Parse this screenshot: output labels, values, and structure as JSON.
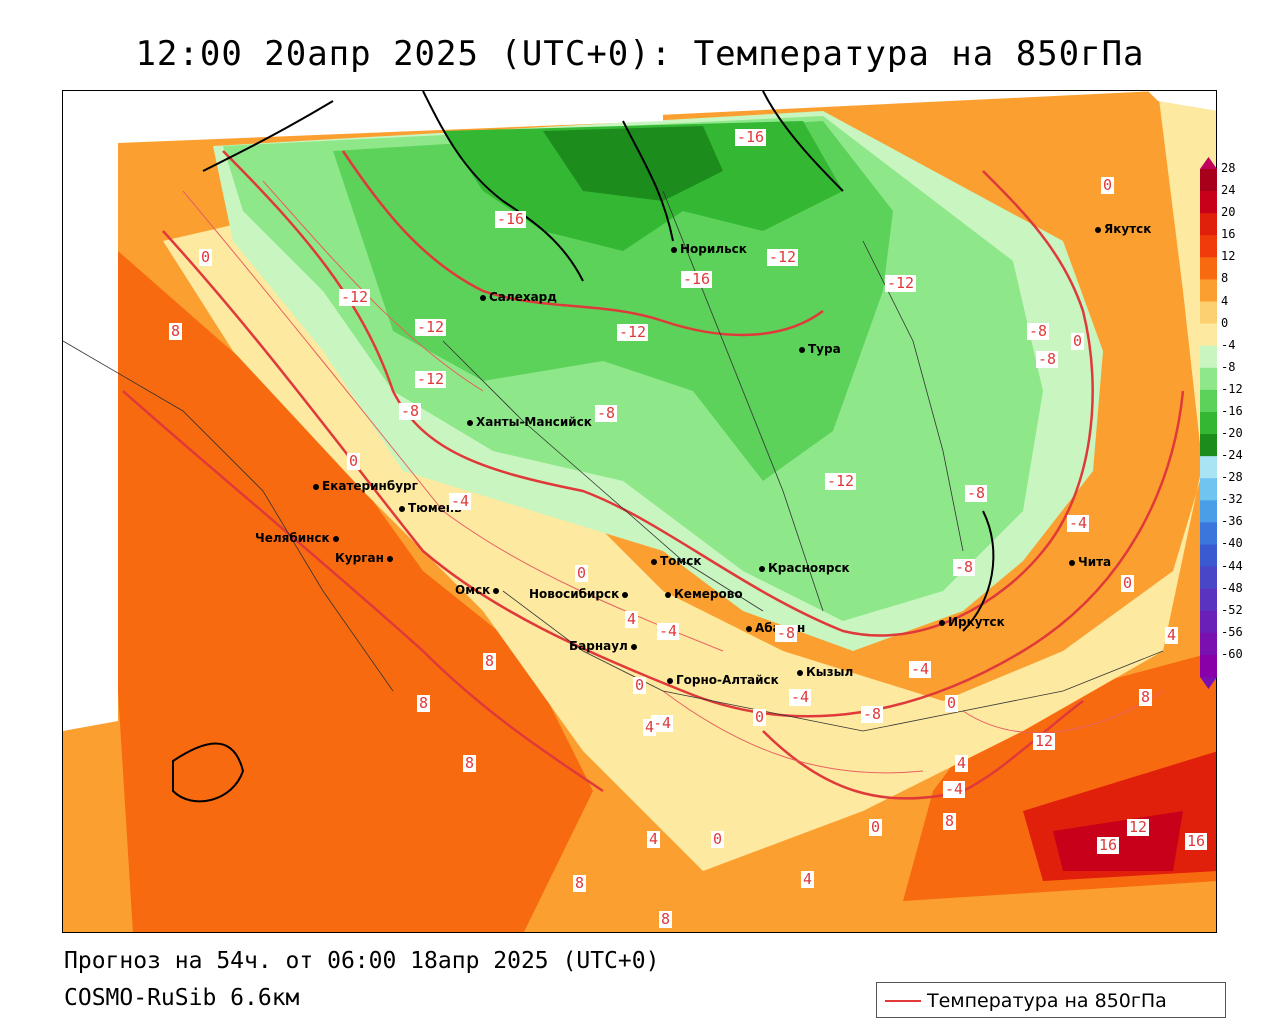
{
  "title": "12:00 20апр 2025 (UTC+0): Температура на 850гПа",
  "footer": {
    "forecast": "Прогноз на 54ч. от 06:00 18апр 2025 (UTC+0)",
    "model": "COSMO-RuSib 6.6км"
  },
  "legend": {
    "label": "Температура на 850гПа",
    "line_color": "#e0393a"
  },
  "colorbar": {
    "ticks": [
      "28",
      "24",
      "20",
      "16",
      "12",
      "8",
      "4",
      "0",
      "-4",
      "-8",
      "-12",
      "-16",
      "-20",
      "-24",
      "-28",
      "-32",
      "-36",
      "-40",
      "-44",
      "-48",
      "-52",
      "-56",
      "-60"
    ],
    "colors": [
      "#a8001a",
      "#c8001a",
      "#e0200a",
      "#f03c0a",
      "#f86a10",
      "#fba030",
      "#fcd070",
      "#fde9a0",
      "#c8f5c0",
      "#8ee88a",
      "#5cd25a",
      "#34b834",
      "#1c8c1c",
      "#a8e4f4",
      "#70c4f0",
      "#4a9ee8",
      "#3b76dc",
      "#3a5ad2",
      "#4a46c8",
      "#5a34c0",
      "#6a20b8",
      "#7a10b0",
      "#8a00a8"
    ]
  },
  "cities": [
    {
      "name": "Якутск"
    },
    {
      "name": "Норильск"
    },
    {
      "name": "Салехард"
    },
    {
      "name": "Тура"
    },
    {
      "name": "Ханты-Мансийск"
    },
    {
      "name": "Екатеринбург"
    },
    {
      "name": "Тюмень"
    },
    {
      "name": "Челябинск"
    },
    {
      "name": "Курган"
    },
    {
      "name": "Омск"
    },
    {
      "name": "Новосибирск"
    },
    {
      "name": "Томск"
    },
    {
      "name": "Кемерово"
    },
    {
      "name": "Красноярск"
    },
    {
      "name": "Абакан"
    },
    {
      "name": "Барнаул"
    },
    {
      "name": "Горно-Алтайск"
    },
    {
      "name": "Кызыл"
    },
    {
      "name": "Иркутск"
    },
    {
      "name": "Чита"
    }
  ],
  "contour_labels": [
    "-16",
    "-16",
    "-16",
    "-12",
    "-12",
    "-12",
    "-12",
    "-12",
    "-12",
    "-12",
    "-8",
    "-8",
    "-8",
    "-8",
    "-8",
    "-8",
    "-8",
    "-8",
    "-4",
    "-4",
    "-4",
    "-4",
    "-4",
    "-4",
    "-4",
    "0",
    "0",
    "0",
    "0",
    "0",
    "0",
    "0",
    "0",
    "0",
    "0",
    "0",
    "4",
    "4",
    "4",
    "4",
    "4",
    "4",
    "8",
    "8",
    "8",
    "8",
    "8",
    "8",
    "8",
    "8",
    "12",
    "12",
    "16",
    "16"
  ]
}
